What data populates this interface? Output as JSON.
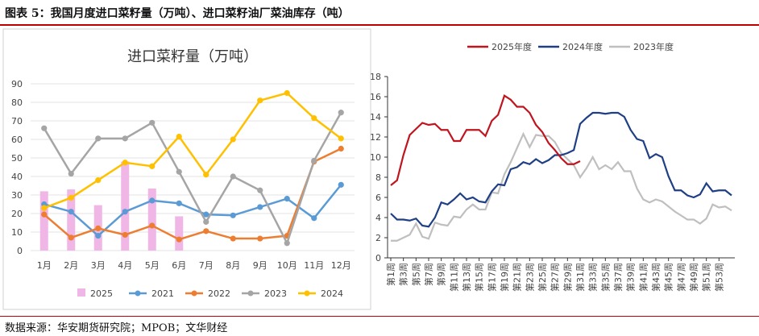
{
  "header": {
    "title": "图表 5：我国月度进口菜籽量（万吨）、进口菜籽油厂菜油库存（吨）"
  },
  "footer": {
    "source": "数据来源：华安期货研究院；MPOB；文华财经"
  },
  "chart_data": [
    {
      "type": "line",
      "title": "进口菜籽量（万吨）",
      "categories": [
        "1月",
        "2月",
        "3月",
        "4月",
        "5月",
        "6月",
        "7月",
        "8月",
        "9月",
        "10月",
        "11月",
        "12月"
      ],
      "ylim": [
        0,
        90
      ],
      "yticks": [
        0,
        10,
        20,
        30,
        40,
        50,
        60,
        70,
        80,
        90
      ],
      "grid": true,
      "legend_position": "bottom",
      "bar_series": {
        "name": "2025",
        "color": "#f0b6e6",
        "values": [
          32,
          33,
          24.5,
          48,
          33.5,
          18.5
        ]
      },
      "series": [
        {
          "name": "2021",
          "color": "#5b9bd5",
          "values": [
            25,
            21,
            8,
            21,
            27,
            25.5,
            19.5,
            19,
            23.5,
            28,
            17.5,
            35.5
          ]
        },
        {
          "name": "2022",
          "color": "#ed7d31",
          "values": [
            19.5,
            7,
            12,
            8.5,
            13.5,
            6,
            10.5,
            6.5,
            6.5,
            8,
            48,
            55
          ]
        },
        {
          "name": "2023",
          "color": "#a5a5a5",
          "values": [
            66,
            41.5,
            60.5,
            60.5,
            69,
            42.5,
            15.5,
            40,
            32.5,
            4,
            48.5,
            74.5
          ]
        },
        {
          "name": "2024",
          "color": "#ffc000",
          "values": [
            23,
            28.5,
            38,
            47.5,
            45.5,
            61.5,
            41,
            60,
            81,
            85,
            71.5,
            60.5
          ]
        }
      ]
    },
    {
      "type": "line",
      "title": "",
      "ylim": [
        0,
        18
      ],
      "yticks": [
        0,
        2,
        4,
        6,
        8,
        10,
        12,
        14,
        16,
        18
      ],
      "grid": false,
      "legend_position": "top",
      "x_labels": [
        "第1周",
        "第3周",
        "第5周",
        "第7周",
        "第9周",
        "第11周",
        "第13周",
        "第15周",
        "第17周",
        "第19周",
        "第21周",
        "第23周",
        "第25周",
        "第27周",
        "第29周",
        "第31周",
        "第33周",
        "第35周",
        "第37周",
        "第39周",
        "第41周",
        "第43周",
        "第45周",
        "第47周",
        "第49周",
        "第51周",
        "第53周"
      ],
      "series": [
        {
          "name": "2025年度",
          "color": "#c0141e",
          "values": [
            7.2,
            7.7,
            10.2,
            12.2,
            12.8,
            13.4,
            13.2,
            13.3,
            12.7,
            12.7,
            11.6,
            11.6,
            12.7,
            12.7,
            12.7,
            12.1,
            13.6,
            14.2,
            16.1,
            15.7,
            15.0,
            15.0,
            14.4,
            13.2,
            12.5,
            11.4,
            10.7,
            9.9,
            9.3,
            9.3,
            9.6
          ]
        },
        {
          "name": "2024年度",
          "color": "#1f3f85",
          "values": [
            4.4,
            3.8,
            3.8,
            3.7,
            3.9,
            3.2,
            3.1,
            4.0,
            5.5,
            5.3,
            5.8,
            6.4,
            5.8,
            6.0,
            5.6,
            5.5,
            6.6,
            7.3,
            7.2,
            8.8,
            9.0,
            9.5,
            9.3,
            9.8,
            9.4,
            9.7,
            10.2,
            10.2,
            10.4,
            10.7,
            13.3,
            13.9,
            14.4,
            14.4,
            14.3,
            14.4,
            14.4,
            14.0,
            12.7,
            11.8,
            11.6,
            9.9,
            10.3,
            10.0,
            8.1,
            6.7,
            6.7,
            6.2,
            6.0,
            6.3,
            7.4,
            6.6,
            6.7,
            6.7,
            6.2
          ]
        },
        {
          "name": "2023年度",
          "color": "#bfbfbf",
          "values": [
            1.7,
            1.7,
            2.0,
            2.3,
            3.4,
            2.1,
            1.9,
            3.5,
            3.3,
            3.2,
            4.1,
            4.0,
            4.8,
            5.3,
            4.8,
            4.8,
            6.5,
            6.4,
            8.3,
            9.5,
            10.9,
            12.3,
            11.0,
            12.2,
            12.1,
            12.1,
            11.5,
            10.4,
            9.8,
            9.2,
            8.0,
            8.9,
            10.0,
            8.8,
            9.2,
            8.8,
            9.5,
            8.6,
            8.6,
            6.9,
            5.8,
            5.5,
            5.8,
            5.6,
            5.1,
            4.6,
            4.2,
            3.8,
            3.8,
            3.4,
            3.9,
            5.3,
            5.0,
            5.1,
            4.7
          ]
        }
      ]
    }
  ]
}
